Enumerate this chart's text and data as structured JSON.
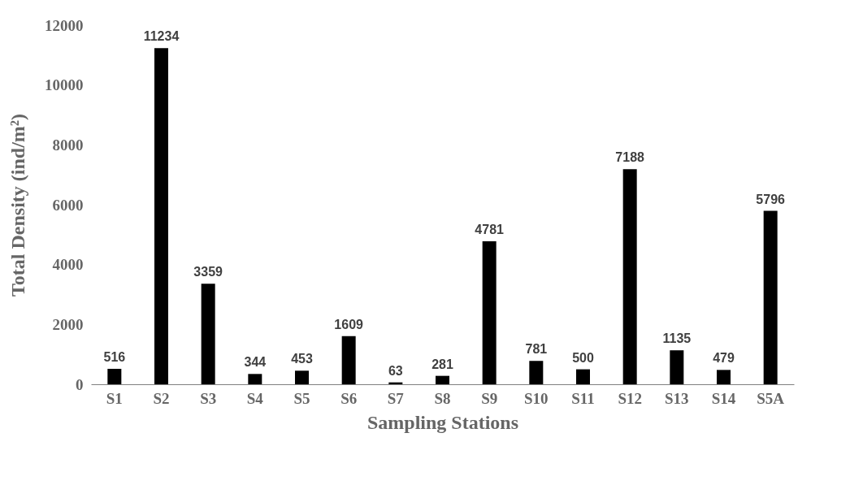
{
  "chart_data": {
    "type": "bar",
    "xlabel": "Sampling Stations",
    "ylabel": "Total Density (ind/m²)",
    "categories": [
      "S1",
      "S2",
      "S3",
      "S4",
      "S5",
      "S6",
      "S7",
      "S8",
      "S9",
      "S10",
      "S11",
      "S12",
      "S13",
      "S14",
      "S5A"
    ],
    "values": [
      516,
      11234,
      3359,
      344,
      453,
      1609,
      63,
      281,
      4781,
      781,
      500,
      7188,
      1135,
      479,
      5796
    ],
    "color": "#000000",
    "ylim": [
      0,
      12000
    ],
    "yticks": [
      0,
      2000,
      4000,
      6000,
      8000,
      10000,
      12000
    ],
    "data_labels": true,
    "grid": false
  }
}
